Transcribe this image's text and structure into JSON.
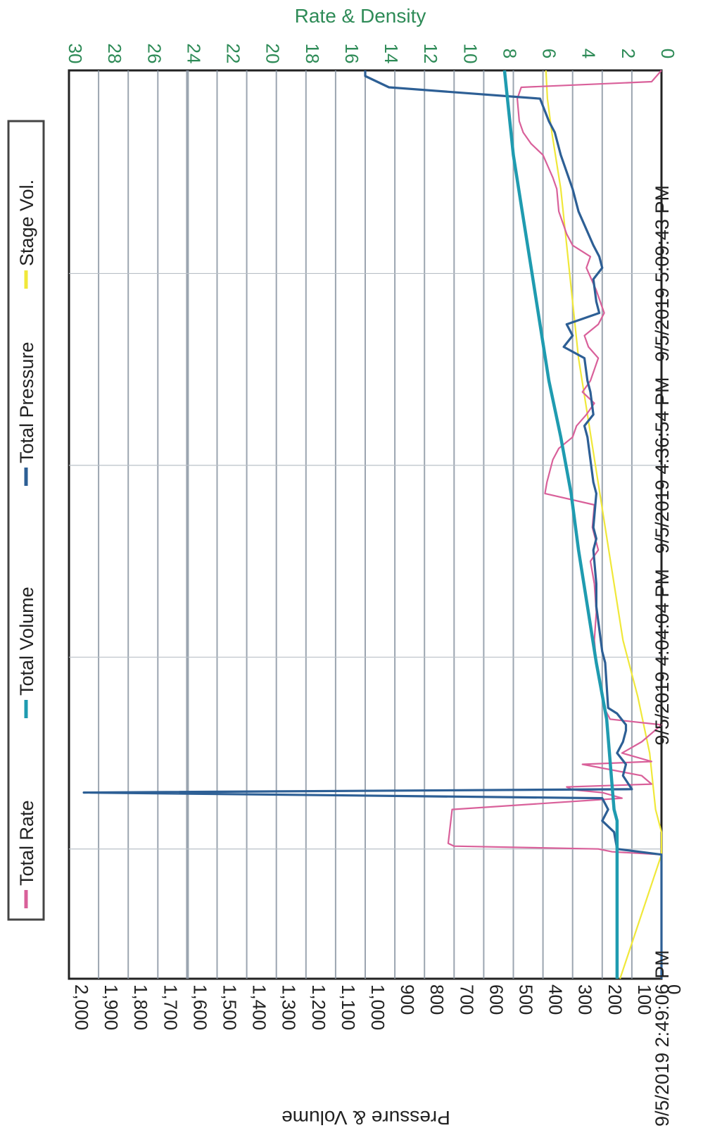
{
  "colors": {
    "total_rate": "#d9609a",
    "total_volume": "#1f9bb0",
    "total_pressure": "#2d5f95",
    "stage_vol": "#f0e83a",
    "rate_axis_text": "#2e8b57",
    "grid": "#8a96a3"
  },
  "chart_data": {
    "type": "line",
    "orientation": "rotated-90-clockwise",
    "rate_axis_title": "Rate & Density",
    "pv_axis_title": "Pressure & Volume",
    "rate_ticks": [
      "30",
      "28",
      "26",
      "24",
      "22",
      "20",
      "18",
      "16",
      "14",
      "12",
      "10",
      "8",
      "6",
      "4",
      "2",
      "0"
    ],
    "pv_ticks": [
      "2,000",
      "1,900",
      "1,800",
      "1,700",
      "1,600",
      "1,500",
      "1,400",
      "1,300",
      "1,200",
      "1,100",
      "1,000",
      "900",
      "800",
      "700",
      "600",
      "500",
      "400",
      "300",
      "200",
      "100",
      "0"
    ],
    "time_ticks": [
      "9/5/2019 2:49:06 PM",
      "9/5/2019 4:04:04 PM",
      "9/5/2019 4:36:54 PM",
      "9/5/2019 5:09:43 PM"
    ],
    "legend": [
      "Total Rate",
      "Total Volume",
      "Total Pressure",
      "Stage Vol."
    ],
    "grid": true,
    "time_range_minutes": [
      0,
      161
    ],
    "rate_range": [
      0,
      30
    ],
    "pv_range": [
      0,
      2000
    ],
    "series": [
      {
        "name": "Total Rate",
        "axis": "rate",
        "points": [
          [
            0,
            0
          ],
          [
            22,
            0
          ],
          [
            22.5,
            2.5
          ],
          [
            23,
            3.2
          ],
          [
            23.5,
            10.5
          ],
          [
            24,
            10.8
          ],
          [
            30,
            10.6
          ],
          [
            32,
            2
          ],
          [
            33,
            3
          ],
          [
            33.5,
            4.5
          ],
          [
            34,
            4.8
          ],
          [
            34.5,
            0.5
          ],
          [
            36,
            1
          ],
          [
            38,
            4
          ],
          [
            38.5,
            0.5
          ],
          [
            40,
            2
          ],
          [
            42,
            1
          ],
          [
            45,
            0
          ],
          [
            46,
            2.6
          ],
          [
            48,
            2.9
          ],
          [
            52,
            3.1
          ],
          [
            56,
            3.3
          ],
          [
            60,
            3.4
          ],
          [
            65,
            3.3
          ],
          [
            70,
            3.4
          ],
          [
            74,
            3.6
          ],
          [
            76,
            3.2
          ],
          [
            80,
            3.5
          ],
          [
            84,
            3.4
          ],
          [
            86,
            5.9
          ],
          [
            88,
            5.8
          ],
          [
            92,
            5.5
          ],
          [
            94,
            5.2
          ],
          [
            96,
            4.5
          ],
          [
            98,
            4.3
          ],
          [
            100,
            3.8
          ],
          [
            102,
            3.4
          ],
          [
            104,
            4
          ],
          [
            106,
            3.6
          ],
          [
            108,
            3.4
          ],
          [
            110,
            3.2
          ],
          [
            112,
            3.7
          ],
          [
            114,
            3.9
          ],
          [
            116,
            3.2
          ],
          [
            118,
            2.9
          ],
          [
            120,
            3.1
          ],
          [
            122,
            3.3
          ],
          [
            126,
            3.8
          ],
          [
            128,
            3.6
          ],
          [
            130,
            4.5
          ],
          [
            132,
            4.8
          ],
          [
            136,
            5.2
          ],
          [
            140,
            5.3
          ],
          [
            142,
            5.5
          ],
          [
            146,
            6.0
          ],
          [
            148,
            6.6
          ],
          [
            150,
            7.0
          ],
          [
            152,
            7.2
          ],
          [
            156,
            7.3
          ],
          [
            158,
            7.1
          ],
          [
            159,
            0.5
          ],
          [
            161,
            0
          ]
        ]
      },
      {
        "name": "Total Volume",
        "axis": "pv",
        "points": [
          [
            0,
            150
          ],
          [
            28,
            150
          ],
          [
            30,
            160
          ],
          [
            46,
            185
          ],
          [
            56,
            220
          ],
          [
            66,
            250
          ],
          [
            76,
            280
          ],
          [
            86,
            305
          ],
          [
            96,
            340
          ],
          [
            106,
            380
          ],
          [
            116,
            410
          ],
          [
            126,
            440
          ],
          [
            136,
            470
          ],
          [
            146,
            500
          ],
          [
            156,
            520
          ],
          [
            161,
            530
          ]
        ]
      },
      {
        "name": "Total Pressure",
        "axis": "pv",
        "points": [
          [
            0,
            0
          ],
          [
            22,
            0
          ],
          [
            23,
            150
          ],
          [
            26,
            160
          ],
          [
            28,
            200
          ],
          [
            30,
            180
          ],
          [
            32,
            200
          ],
          [
            33,
            1950
          ],
          [
            33.6,
            100
          ],
          [
            36,
            130
          ],
          [
            38,
            120
          ],
          [
            40,
            150
          ],
          [
            42,
            130
          ],
          [
            44,
            120
          ],
          [
            45,
            120
          ],
          [
            47,
            150
          ],
          [
            48,
            180
          ],
          [
            56,
            190
          ],
          [
            58,
            200
          ],
          [
            66,
            220
          ],
          [
            68,
            220
          ],
          [
            70,
            220
          ],
          [
            76,
            230
          ],
          [
            78,
            220
          ],
          [
            80,
            230
          ],
          [
            86,
            220
          ],
          [
            88,
            230
          ],
          [
            92,
            240
          ],
          [
            96,
            250
          ],
          [
            98,
            260
          ],
          [
            100,
            230
          ],
          [
            104,
            240
          ],
          [
            106,
            250
          ],
          [
            110,
            260
          ],
          [
            112,
            330
          ],
          [
            114,
            300
          ],
          [
            116,
            320
          ],
          [
            118,
            210
          ],
          [
            120,
            220
          ],
          [
            124,
            230
          ],
          [
            126,
            200
          ],
          [
            128,
            210
          ],
          [
            130,
            230
          ],
          [
            136,
            280
          ],
          [
            140,
            300
          ],
          [
            146,
            340
          ],
          [
            150,
            360
          ],
          [
            152,
            380
          ],
          [
            156,
            410
          ],
          [
            158,
            920
          ],
          [
            160,
            1000
          ],
          [
            161,
            1000
          ]
        ]
      },
      {
        "name": "Stage Vol.",
        "axis": "pv",
        "points": [
          [
            0,
            140
          ],
          [
            22,
            0
          ],
          [
            26,
            0
          ],
          [
            30,
            20
          ],
          [
            40,
            40
          ],
          [
            50,
            80
          ],
          [
            60,
            130
          ],
          [
            70,
            160
          ],
          [
            80,
            190
          ],
          [
            90,
            220
          ],
          [
            100,
            250
          ],
          [
            110,
            280
          ],
          [
            120,
            300
          ],
          [
            130,
            320
          ],
          [
            140,
            340
          ],
          [
            150,
            370
          ],
          [
            156,
            385
          ],
          [
            161,
            390
          ]
        ]
      }
    ]
  }
}
